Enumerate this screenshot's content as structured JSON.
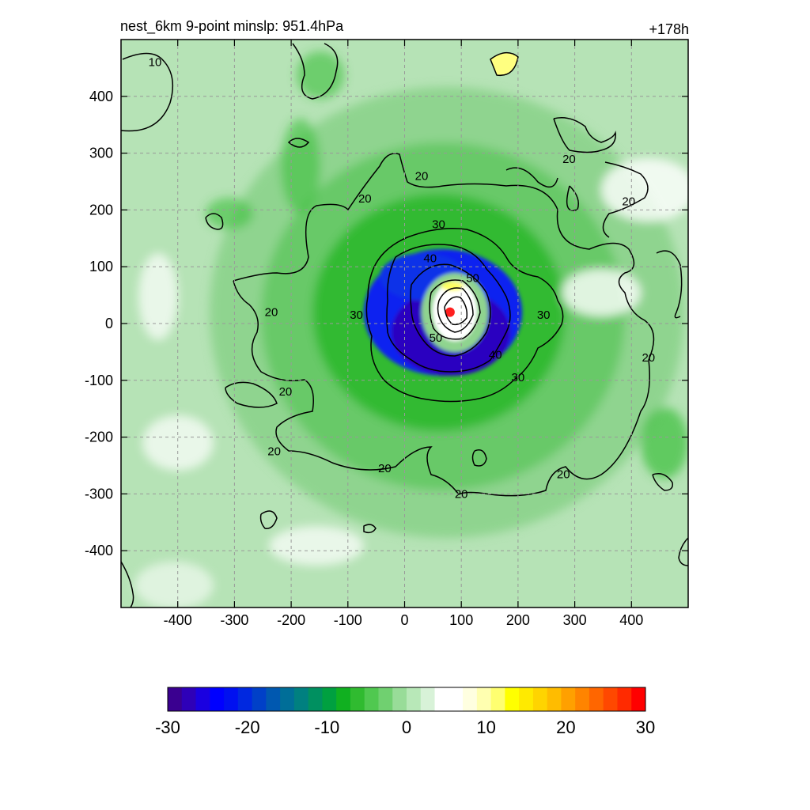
{
  "chart_data": {
    "type": "heatmap",
    "title": "nest_6km  9-point minslp: 951.4hPa",
    "time_label": "+178h",
    "x_ticks": [
      -400,
      -300,
      -200,
      -100,
      0,
      100,
      200,
      300,
      400
    ],
    "y_ticks": [
      400,
      300,
      200,
      100,
      0,
      -100,
      -200,
      -300,
      -400
    ],
    "xlim": [
      -500,
      500
    ],
    "ylim": [
      -500,
      500
    ],
    "grid": true,
    "storm_center": {
      "x": 80,
      "y": 20
    },
    "colorbar": {
      "min": -30,
      "max": 30,
      "ticks": [
        -30,
        -20,
        -10,
        0,
        10,
        20,
        30
      ],
      "colors": [
        "#3a0090",
        "#2e00b8",
        "#1a00e0",
        "#0000ff",
        "#0010f0",
        "#0028e0",
        "#0040c8",
        "#0058b0",
        "#006e98",
        "#008080",
        "#009060",
        "#00a040",
        "#10b020",
        "#30bb30",
        "#50c850",
        "#70d070",
        "#98dc98",
        "#b8e8b8",
        "#d8f2d8",
        "#ffffff",
        "#ffffff",
        "#ffffe0",
        "#ffffb0",
        "#ffff70",
        "#ffff00",
        "#ffea00",
        "#ffd400",
        "#ffbc00",
        "#ffa000",
        "#ff8400",
        "#ff6600",
        "#ff4800",
        "#ff2a00",
        "#ff0000"
      ]
    },
    "contours": [
      {
        "level": 20,
        "labels": [
          {
            "x": -70,
            "y": 220,
            "text": "20"
          },
          {
            "x": 30,
            "y": 260,
            "text": "20"
          },
          {
            "x": 290,
            "y": 290,
            "text": "20"
          },
          {
            "x": 395,
            "y": 215,
            "text": "20"
          },
          {
            "x": -210,
            "y": -120,
            "text": "20"
          },
          {
            "x": -235,
            "y": 20,
            "text": "20"
          },
          {
            "x": -230,
            "y": -225,
            "text": "20"
          },
          {
            "x": -35,
            "y": -255,
            "text": "20"
          },
          {
            "x": 100,
            "y": -300,
            "text": "20"
          },
          {
            "x": 280,
            "y": -265,
            "text": "20"
          },
          {
            "x": 430,
            "y": -60,
            "text": "20"
          }
        ]
      },
      {
        "level": 30,
        "labels": [
          {
            "x": 60,
            "y": 175,
            "text": "30"
          },
          {
            "x": -85,
            "y": 15,
            "text": "30"
          },
          {
            "x": 245,
            "y": 15,
            "text": "30"
          },
          {
            "x": 200,
            "y": -95,
            "text": "30"
          }
        ]
      },
      {
        "level": 40,
        "labels": [
          {
            "x": 45,
            "y": 115,
            "text": "40"
          },
          {
            "x": 160,
            "y": -55,
            "text": "40"
          }
        ]
      },
      {
        "level": 50,
        "labels": [
          {
            "x": 120,
            "y": 80,
            "text": "50"
          },
          {
            "x": 55,
            "y": -25,
            "text": "50"
          }
        ]
      }
    ],
    "contour_label_10": {
      "x": -440,
      "y": 460,
      "text": "10"
    }
  }
}
